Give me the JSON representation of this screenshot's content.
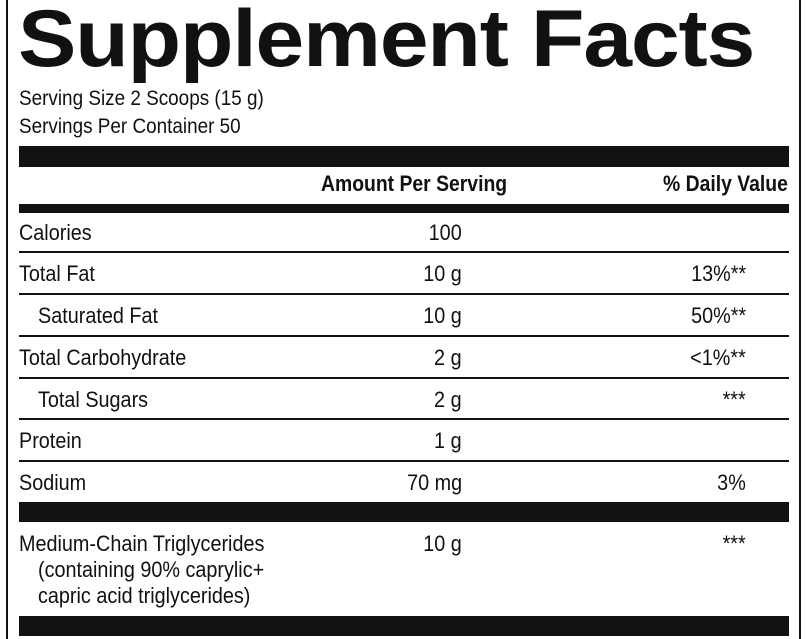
{
  "title": "Supplement  Facts",
  "serving": {
    "size": "Serving Size 2 Scoops (15 g)",
    "per_container": "Servings Per Container 50"
  },
  "header": {
    "amount": "Amount Per Serving",
    "daily_value": "% Daily Value"
  },
  "rows": [
    {
      "name": "Calories",
      "amount": "100",
      "dv": ""
    },
    {
      "name": "Total Fat",
      "amount": "10 g",
      "dv": "13%**"
    },
    {
      "name": "Saturated Fat",
      "amount": "10 g",
      "dv": "50%**"
    },
    {
      "name": "Total Carbohydrate",
      "amount": "2 g",
      "dv": "<1%**"
    },
    {
      "name": "Total Sugars",
      "amount": "2 g",
      "dv": "***"
    },
    {
      "name": "Protein",
      "amount": "1 g",
      "dv": ""
    },
    {
      "name": "Sodium",
      "amount": "70 mg",
      "dv": "3%"
    }
  ],
  "mct": {
    "name": "Medium-Chain Triglycerides",
    "line2": "(containing 90% caprylic+",
    "line3": "capric acid triglycerides)",
    "amount": "10 g",
    "dv": "***"
  }
}
